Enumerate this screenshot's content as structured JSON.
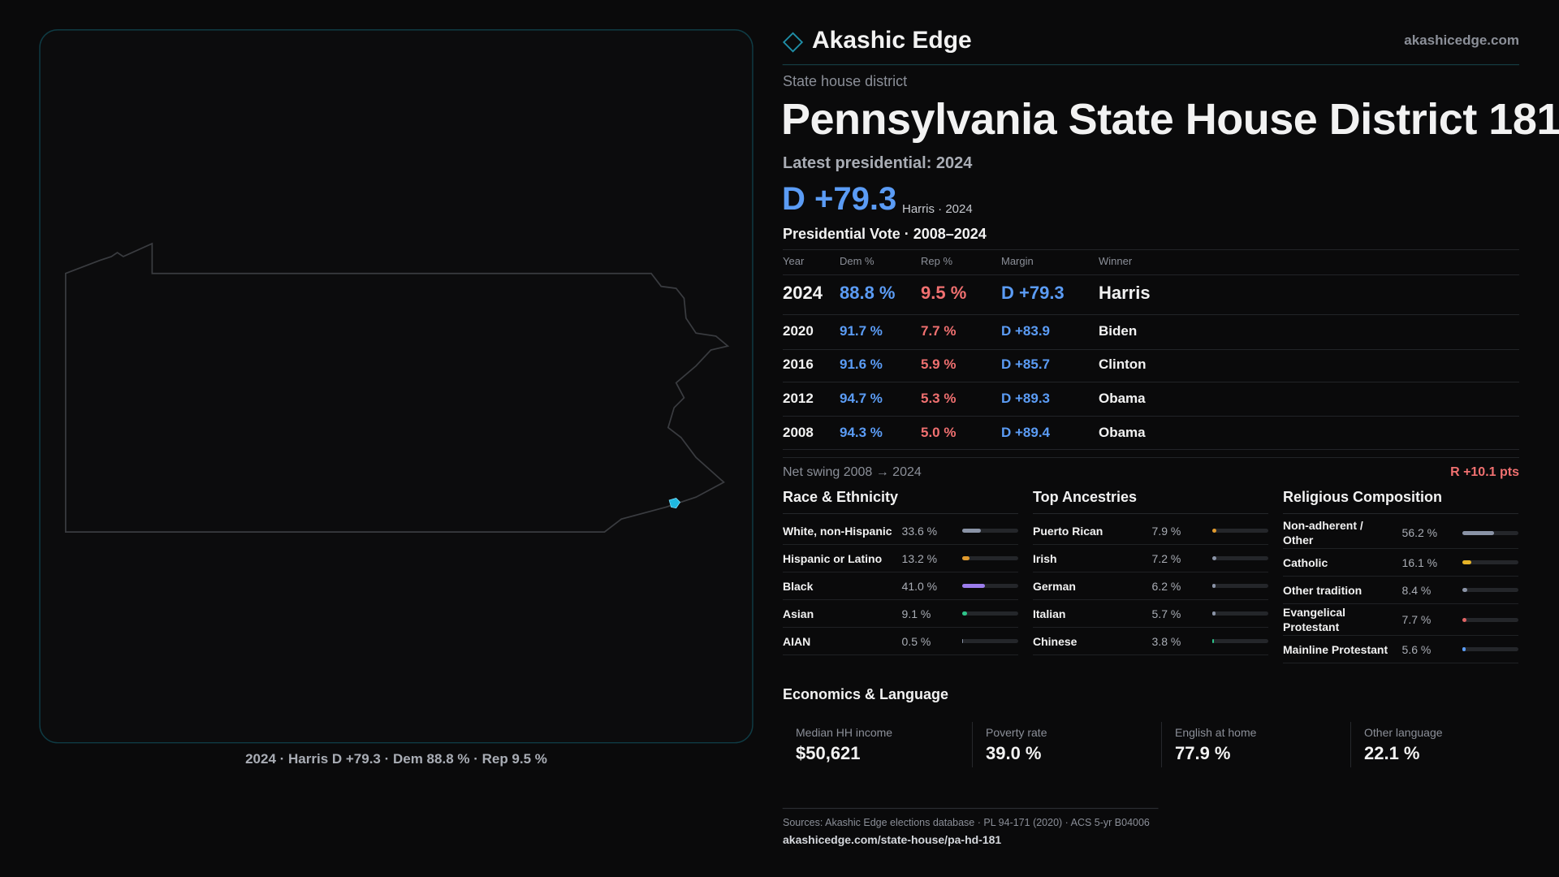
{
  "header": {
    "brand": "Akashic Edge",
    "site": "akashicedge.com"
  },
  "district": {
    "kind": "State house district",
    "title": "Pennsylvania State House District 181",
    "latest": "Latest presidential: 2024",
    "margin": "D +79.3",
    "margin_note": "Harris · 2024"
  },
  "map": {
    "caption": "2024 · Harris D +79.3 · Dem 88.8 % · Rep 9.5 %"
  },
  "votes": {
    "title": "Presidential Vote · 2008–2024",
    "columns": [
      "Year",
      "Dem %",
      "Rep %",
      "Margin",
      "Winner"
    ],
    "rows": [
      [
        "2024",
        "88.8 %",
        "9.5 %",
        "D +79.3",
        "Harris"
      ],
      [
        "2020",
        "91.7 %",
        "7.7 %",
        "D +83.9",
        "Biden"
      ],
      [
        "2016",
        "91.6 %",
        "5.9 %",
        "D +85.7",
        "Clinton"
      ],
      [
        "2012",
        "94.7 %",
        "5.3 %",
        "D +89.3",
        "Obama"
      ],
      [
        "2008",
        "94.3 %",
        "5.0 %",
        "D +89.4",
        "Obama"
      ]
    ]
  },
  "swing": {
    "label": "Net swing 2008 → 2024",
    "value": "R +10.1 pts"
  },
  "race": {
    "title": "Race & Ethnicity",
    "items": [
      {
        "name": "White, non-Hispanic",
        "value": 33.6,
        "label": "33.6 %",
        "color": "#8a93a6"
      },
      {
        "name": "Hispanic or Latino",
        "value": 13.2,
        "label": "13.2 %",
        "color": "#e09a2e"
      },
      {
        "name": "Black",
        "value": 41.0,
        "label": "41.0 %",
        "color": "#9b7cec"
      },
      {
        "name": "Asian",
        "value": 9.1,
        "label": "9.1 %",
        "color": "#2ec48a"
      },
      {
        "name": "AIAN",
        "value": 0.5,
        "label": "0.5 %",
        "color": "#8a93a6"
      }
    ]
  },
  "ancestry": {
    "title": "Top Ancestries",
    "items": [
      {
        "name": "Puerto Rican",
        "value": 7.9,
        "label": "7.9 %",
        "color": "#e09a2e"
      },
      {
        "name": "Irish",
        "value": 7.2,
        "label": "7.2 %",
        "color": "#8a93a6"
      },
      {
        "name": "German",
        "value": 6.2,
        "label": "6.2 %",
        "color": "#8a93a6"
      },
      {
        "name": "Italian",
        "value": 5.7,
        "label": "5.7 %",
        "color": "#8a93a6"
      },
      {
        "name": "Chinese",
        "value": 3.8,
        "label": "3.8 %",
        "color": "#2ec48a"
      }
    ]
  },
  "religion": {
    "title": "Religious Composition",
    "items": [
      {
        "name": "Non-adherent / Other",
        "value": 56.2,
        "label": "56.2 %",
        "color": "#8a93a6"
      },
      {
        "name": "Catholic",
        "value": 16.1,
        "label": "16.1 %",
        "color": "#e6b428"
      },
      {
        "name": "Other tradition",
        "value": 8.4,
        "label": "8.4 %",
        "color": "#8a93a6"
      },
      {
        "name": "Evangelical Protestant",
        "value": 7.7,
        "label": "7.7 %",
        "color": "#e06464"
      },
      {
        "name": "Mainline Protestant",
        "value": 5.6,
        "label": "5.6 %",
        "color": "#5b9cf5"
      }
    ]
  },
  "economics": {
    "title": "Economics & Language",
    "stats": [
      {
        "label": "Median HH income",
        "value": "$50,621"
      },
      {
        "label": "Poverty rate",
        "value": "39.0 %"
      },
      {
        "label": "English at home",
        "value": "77.9 %"
      },
      {
        "label": "Other language",
        "value": "22.1 %"
      }
    ]
  },
  "footer": {
    "sources": "Sources: Akashic Edge elections database · PL 94-171 (2020) · ACS 5-yr B04006",
    "url": "akashicedge.com/state-house/pa-hd-181"
  }
}
